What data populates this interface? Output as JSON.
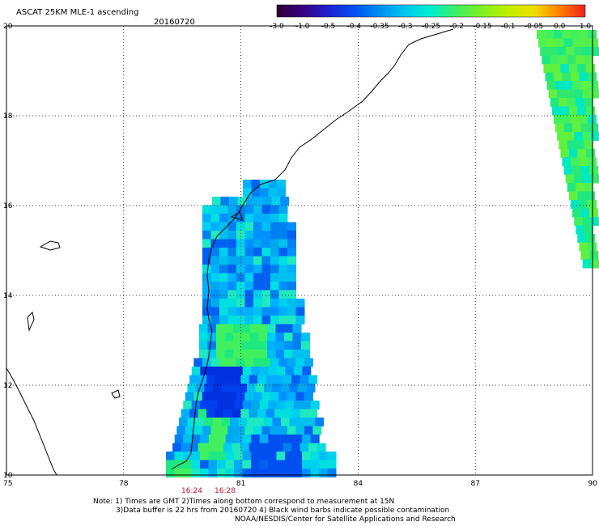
{
  "header": {
    "title": "ASCAT 25KM MLE-1 ascending",
    "date": "20160720"
  },
  "colorbar": {
    "labels": [
      "-3.0",
      "-1.0",
      "-0.5",
      "-0.4",
      "-0.35",
      "-0.3",
      "-0.25",
      "-0.2",
      "-0.15",
      "-0.1",
      "-0.05",
      "0.0",
      "1.0"
    ],
    "colors": [
      "#2b0030",
      "#3a0080",
      "#2020d0",
      "#0050f0",
      "#0090f0",
      "#00c8f0",
      "#00f0d0",
      "#40f060",
      "#80f020",
      "#c0f000",
      "#f0e000",
      "#ff8000",
      "#f02020"
    ]
  },
  "axes": {
    "x_ticks": [
      "75",
      "78",
      "81",
      "84",
      "87",
      "90"
    ],
    "y_ticks": [
      "10",
      "12",
      "14",
      "16",
      "18",
      "20"
    ]
  },
  "pass_times": [
    "16:24",
    "16:28"
  ],
  "notes": {
    "line1": "Note: 1) Times are GMT 2)Times along bottom correspond to measurement at 15N",
    "line2": "3)Data buffer is 22 hrs from 20160720 4) Black wind barbs indicate possible contamination",
    "line3": "NOAA/NESDIS/Center for Satellite Applications and Research"
  }
}
